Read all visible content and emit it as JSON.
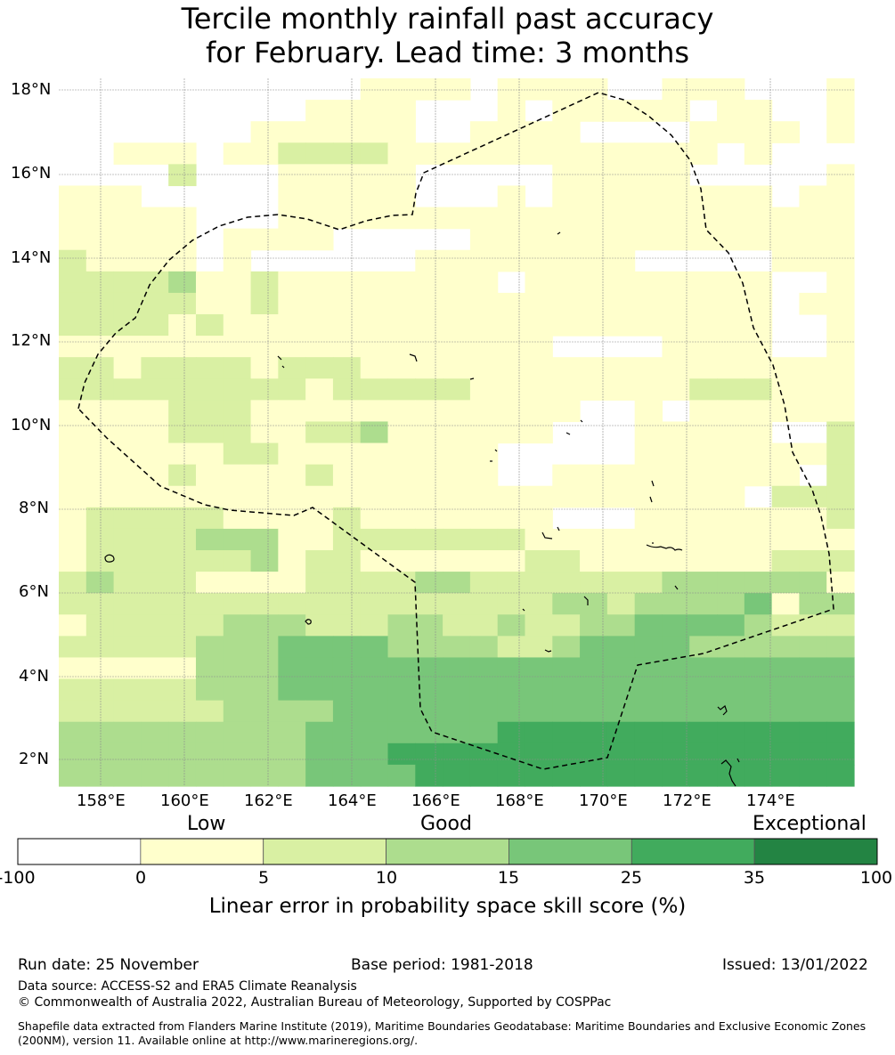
{
  "title": {
    "line1": "Tercile monthly rainfall past accuracy",
    "line2": "for February. Lead time: 3 months"
  },
  "map": {
    "lat_labels": [
      "18°N",
      "16°N",
      "14°N",
      "12°N",
      "10°N",
      "8°N",
      "6°N",
      "4°N",
      "2°N"
    ],
    "lon_labels": [
      "158°E",
      "160°E",
      "162°E",
      "164°E",
      "166°E",
      "168°E",
      "170°E",
      "172°E",
      "174°E"
    ],
    "lat_range": [
      1.4,
      18.3
    ],
    "lon_range": [
      157.0,
      176.0
    ],
    "grid_cell_deg": 0.83,
    "skill_rows_north_to_south": [
      "00000000000111101111001110001",
      "00000000011110001011111011001",
      "00000001111110011110000111101",
      "00111011222211111111111101000",
      "00002000111110000011111000001",
      "11100000111110001011111111011",
      "11111000111111111111111111111",
      "11111011110000011111111111111",
      "21111010000001111111100000111",
      "22223112111111110111111111001",
      "22222112111111111111111111011",
      "22221211111111111111111111001",
      "11111111111111111100001111001",
      "22122221222111111111111111111",
      "22222222212222211111111222111",
      "11112221111111111110010111111",
      "11112221122311111100011111002",
      "11111122111111110000011111112",
      "11112111121111110011111111102",
      "11111111111111111111111110222",
      "12222211112111111100011111112",
      "12222333112222222111111111111",
      "12222223122111111221111111222",
      "23222111122223322222223333331",
      "22222222222222222233233334133",
      "12222233322233223223344443222",
      "22222333444433332234444333333",
      "11111333444444444444444444444",
      "22222333444444444444444444444",
      "22222233334444444444444444444",
      "33333333344444445555555555555",
      "33333333344455555555555555555",
      "33333333344445555555555555555"
    ]
  },
  "colorbar": {
    "categories": [
      "Low",
      "Good",
      "Exceptional"
    ],
    "ticks": [
      "-100",
      "0",
      "5",
      "10",
      "15",
      "25",
      "35",
      "100"
    ],
    "colors": [
      "#ffffff",
      "#ffffcc",
      "#d9f0a3",
      "#addd8e",
      "#78c679",
      "#41ab5d",
      "#238443"
    ],
    "label": "Linear error in probability space skill score (%)"
  },
  "footer": {
    "run_date": "Run date: 25 November",
    "base_period": "Base period: 1981-2018",
    "issued": "Issued: 13/01/2022",
    "data_source": "Data source: ACCESS-S2 and ERA5 Climate Reanalysis",
    "copyright": "© Commonwealth of Australia 2022, Australian Bureau of Meteorology, Supported by COSPPac",
    "shapefile": "Shapefile data extracted from Flanders Marine Institute (2019), Maritime Boundaries Geodatabase: Maritime Boundaries and Exclusive Economic Zones (200NM), version 11. Available online at http://www.marineregions.org/."
  }
}
